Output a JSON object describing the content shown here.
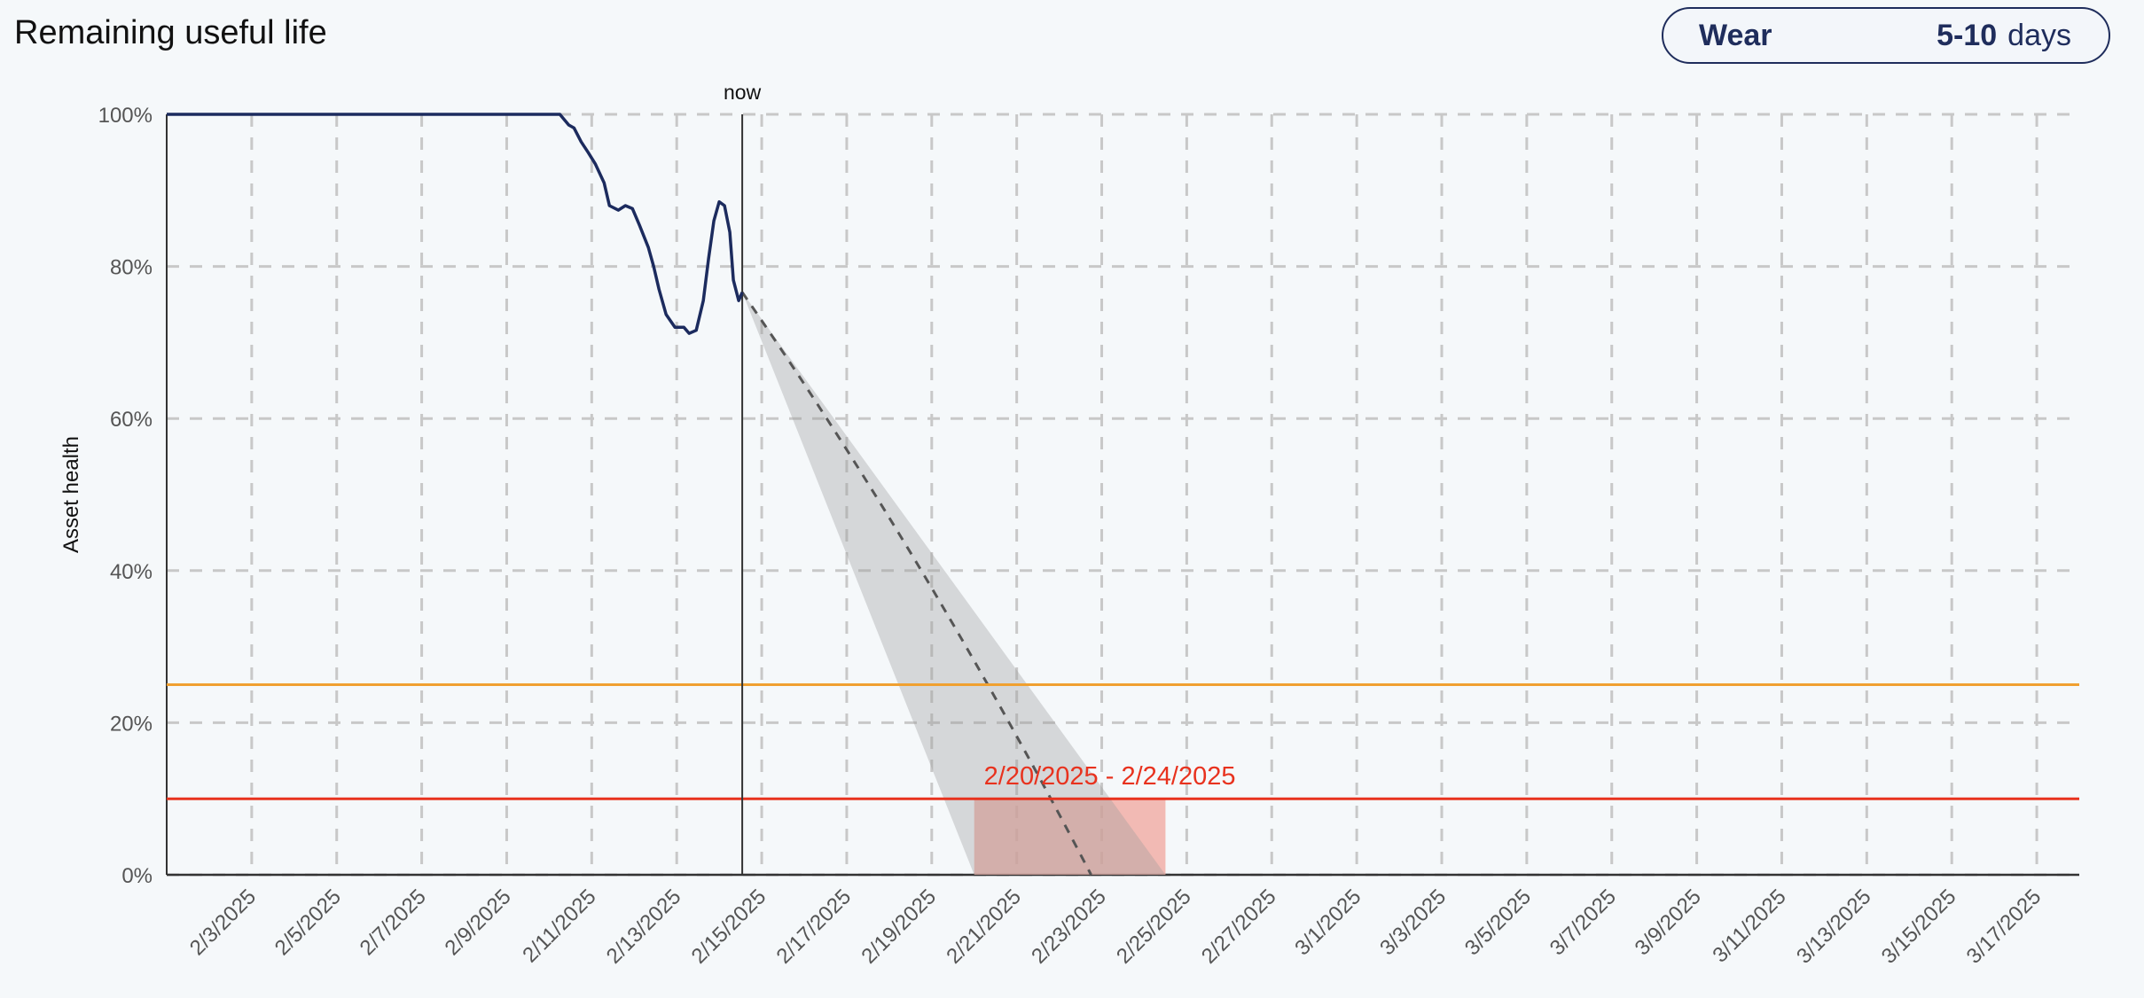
{
  "header": {
    "title": "Remaining useful life"
  },
  "badge": {
    "label": "Wear",
    "value": "5-10",
    "unit": "days"
  },
  "chart_data": {
    "type": "line",
    "title": "",
    "xlabel": "",
    "ylabel": "Asset health",
    "xlim": [
      "2025-02-01",
      "2025-03-18"
    ],
    "ylim": [
      0,
      100
    ],
    "grid": true,
    "x_tick_labels": [
      "2/3/2025",
      "2/5/2025",
      "2/7/2025",
      "2/9/2025",
      "2/11/2025",
      "2/13/2025",
      "2/15/2025",
      "2/17/2025",
      "2/19/2025",
      "2/21/2025",
      "2/23/2025",
      "2/25/2025",
      "2/27/2025",
      "3/1/2025",
      "3/3/2025",
      "3/5/2025",
      "3/7/2025",
      "3/9/2025",
      "3/11/2025",
      "3/13/2025",
      "3/15/2025",
      "3/17/2025"
    ],
    "x_ticks": [
      "2025-02-03",
      "2025-02-05",
      "2025-02-07",
      "2025-02-09",
      "2025-02-11",
      "2025-02-13",
      "2025-02-15",
      "2025-02-17",
      "2025-02-19",
      "2025-02-21",
      "2025-02-23",
      "2025-02-25",
      "2025-02-27",
      "2025-03-01",
      "2025-03-03",
      "2025-03-05",
      "2025-03-07",
      "2025-03-09",
      "2025-03-11",
      "2025-03-13",
      "2025-03-15",
      "2025-03-17"
    ],
    "y_ticks": [
      0,
      20,
      40,
      60,
      80,
      100
    ],
    "y_tick_labels": [
      "0%",
      "20%",
      "40%",
      "60%",
      "80%",
      "100%"
    ],
    "series": [
      {
        "color": "#1c2b5e",
        "points": [
          [
            "2025-02-01T00:00",
            100
          ],
          [
            "2025-02-10T06:00",
            100
          ],
          [
            "2025-02-10T11:00",
            98.6
          ],
          [
            "2025-02-10T14:00",
            98.2
          ],
          [
            "2025-02-10T18:00",
            96.4
          ],
          [
            "2025-02-10T22:00",
            95
          ],
          [
            "2025-02-11T02:00",
            93.5
          ],
          [
            "2025-02-11T07:00",
            91
          ],
          [
            "2025-02-11T10:00",
            88
          ],
          [
            "2025-02-11T15:00",
            87.4
          ],
          [
            "2025-02-11T19:00",
            88
          ],
          [
            "2025-02-11T23:00",
            87.6
          ],
          [
            "2025-02-12T03:00",
            85.4
          ],
          [
            "2025-02-12T08:00",
            82.5
          ],
          [
            "2025-02-12T11:00",
            80
          ],
          [
            "2025-02-12T14:00",
            77
          ],
          [
            "2025-02-12T18:00",
            73.7
          ],
          [
            "2025-02-12T23:00",
            72
          ],
          [
            "2025-02-13T04:00",
            72
          ],
          [
            "2025-02-13T07:00",
            71.2
          ],
          [
            "2025-02-13T11:00",
            71.6
          ],
          [
            "2025-02-13T15:00",
            75.5
          ],
          [
            "2025-02-13T18:00",
            81
          ],
          [
            "2025-02-13T21:00",
            86
          ],
          [
            "2025-02-14T00:00",
            88.5
          ],
          [
            "2025-02-14T03:00",
            88
          ],
          [
            "2025-02-14T06:00",
            84.5
          ],
          [
            "2025-02-14T08:00",
            78.2
          ],
          [
            "2025-02-14T11:00",
            75.5
          ],
          [
            "2025-02-14T13:00",
            76.6
          ]
        ]
      }
    ],
    "now": {
      "label": "now",
      "date": "2025-02-14T13:00"
    },
    "forecast": {
      "start": [
        "2025-02-14T13:00",
        76.6
      ],
      "expected_zero": "2025-02-22T18:00",
      "lower_zero": "2025-02-20T00:00",
      "upper_zero": "2025-02-24T12:00"
    },
    "thresholds": [
      {
        "value": 25,
        "color": "#f0a030"
      },
      {
        "value": 10,
        "color": "#e8321e"
      }
    ],
    "failure_window": {
      "label": "2/20/2025 - 2/24/2025",
      "start": "2025-02-20T00:00",
      "end": "2025-02-24T12:00",
      "top": 10,
      "color": "#e8321e"
    }
  }
}
